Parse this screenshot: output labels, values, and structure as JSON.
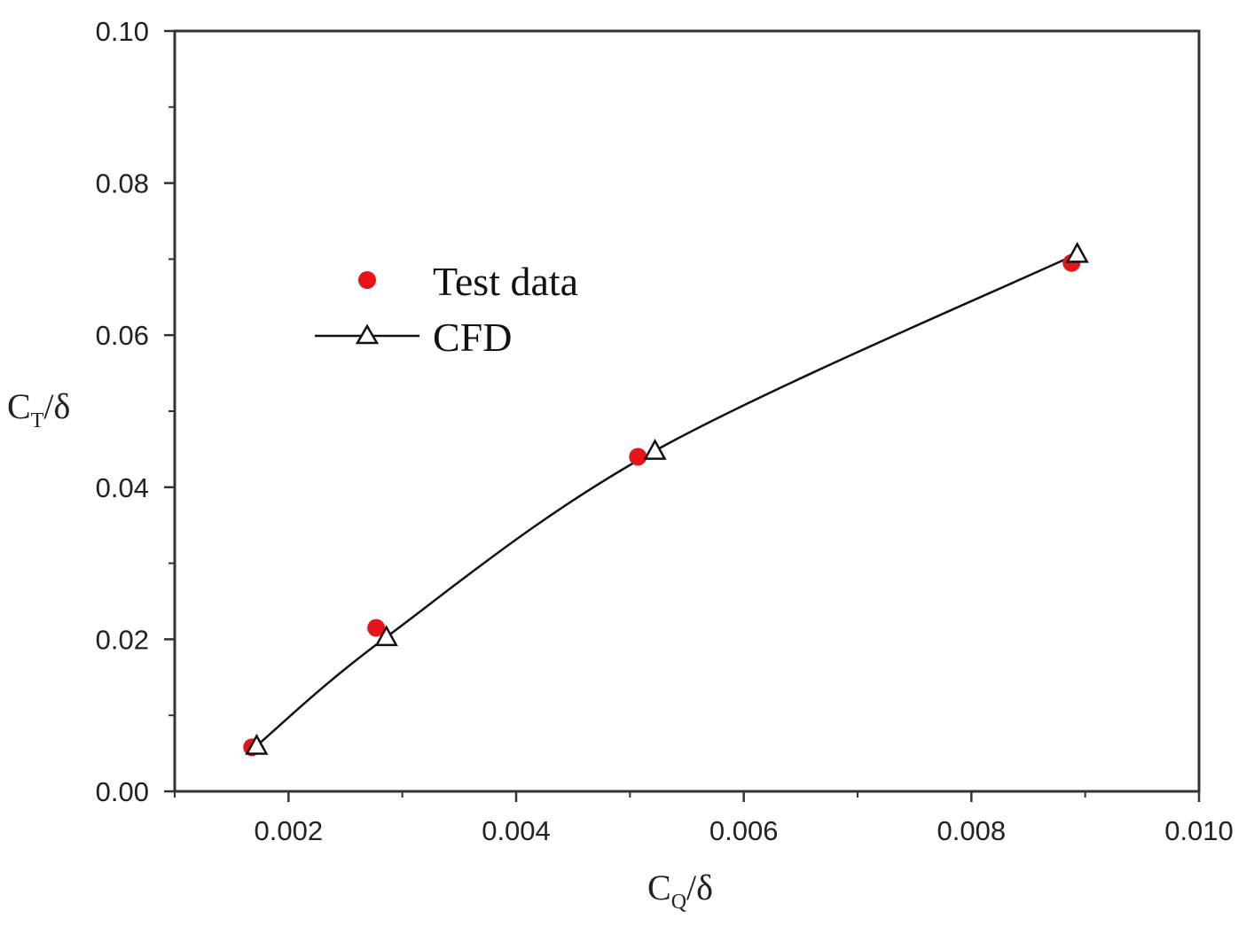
{
  "chart_data": {
    "type": "scatter",
    "title": "",
    "xlabel": {
      "main": "C",
      "sub": "Q",
      "suffix": "/δ"
    },
    "ylabel": {
      "main": "C",
      "sub": "T",
      "suffix": "/δ"
    },
    "xlim": [
      0.001,
      0.01
    ],
    "ylim": [
      0.0,
      0.1
    ],
    "x_ticks": [
      0.002,
      0.004,
      0.006,
      0.008,
      0.01
    ],
    "x_tick_labels": [
      "0.002",
      "0.004",
      "0.006",
      "0.008",
      "0.010"
    ],
    "y_ticks": [
      0.0,
      0.02,
      0.04,
      0.06,
      0.08,
      0.1
    ],
    "y_tick_labels": [
      "0.00",
      "0.02",
      "0.04",
      "0.06",
      "0.08",
      "0.10"
    ],
    "grid": false,
    "legend_position": "upper-left",
    "series": [
      {
        "name": "Test data",
        "style": "markers",
        "marker": "filled-circle",
        "color": "#e8141b",
        "points": [
          {
            "x": 0.00168,
            "y": 0.0058
          },
          {
            "x": 0.00277,
            "y": 0.0215
          },
          {
            "x": 0.00507,
            "y": 0.044
          },
          {
            "x": 0.00888,
            "y": 0.0695
          }
        ]
      },
      {
        "name": "CFD",
        "style": "line-markers",
        "marker": "open-triangle",
        "color": "#111111",
        "points": [
          {
            "x": 0.00172,
            "y": 0.006
          },
          {
            "x": 0.00286,
            "y": 0.0203
          },
          {
            "x": 0.00522,
            "y": 0.0448
          },
          {
            "x": 0.00893,
            "y": 0.0707
          }
        ]
      }
    ]
  }
}
